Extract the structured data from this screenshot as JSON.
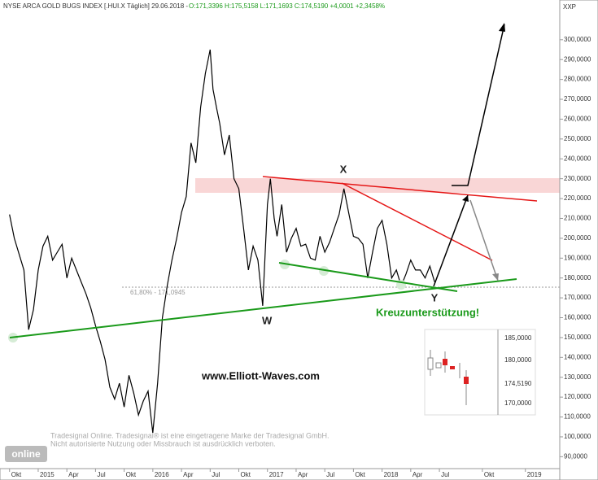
{
  "chart_data": {
    "type": "line",
    "title": "NYSE ARCA GOLD BUGS INDEX [.HUI.X  Täglich] 29.06.2018 -",
    "subtitle": "O:171,3396 H:175,5158 L:171,1693 C:174,5190 +4,0001 +2,3458%",
    "axis_label": "XXP",
    "color": "#000000",
    "x": [
      0,
      0.5,
      1,
      1.5,
      2,
      2.5,
      3,
      3.5,
      4,
      4.5,
      5,
      5.5,
      6,
      6.5,
      7,
      7.5,
      8,
      8.5,
      9,
      9.5,
      10,
      10.5,
      11,
      11.5,
      12,
      12.5,
      13,
      13.5,
      14,
      14.5,
      15,
      15.5,
      16,
      16.5,
      17,
      17.5,
      18,
      18.5,
      19,
      19.5,
      20,
      20.5,
      21,
      21.3,
      21.7,
      22,
      22.5,
      23,
      23.5,
      24,
      24.5,
      25,
      25.5,
      26,
      26.5,
      27,
      27.3,
      27.7,
      28,
      28.5,
      29,
      29.5,
      30,
      30.5,
      31,
      31.5,
      32,
      32.5,
      33,
      33.5,
      34,
      34.5,
      35,
      35.5,
      36,
      36.5,
      37,
      37.5,
      38,
      38.5,
      39,
      39.5,
      40,
      40.5,
      41,
      41.5,
      42,
      42.5,
      43,
      43.5,
      44,
      44.5
    ],
    "values": [
      212,
      200,
      192,
      184,
      154,
      164,
      184,
      196,
      201,
      189,
      193,
      197,
      180,
      190,
      184,
      178,
      172,
      165,
      156,
      148,
      139,
      125,
      119,
      127,
      115,
      131,
      122,
      111,
      118,
      123,
      102,
      127,
      160,
      176,
      189,
      200,
      213,
      221,
      248,
      238,
      266,
      283,
      295,
      275,
      265,
      258,
      242,
      252,
      230,
      225,
      205,
      184,
      196,
      189,
      166,
      217,
      230,
      210,
      201,
      217,
      193,
      200,
      205,
      196,
      197,
      190,
      189,
      201,
      193,
      198,
      205,
      212,
      225,
      213,
      201,
      200,
      197,
      180,
      193,
      205,
      209,
      197,
      180,
      184,
      176,
      182,
      189,
      184,
      184,
      180,
      186,
      178
    ],
    "xlim": [
      -1,
      57.6
    ],
    "ylim": [
      84,
      320
    ],
    "xticks": [
      {
        "value": 0,
        "label": "Okt"
      },
      {
        "value": 3,
        "label": "2015"
      },
      {
        "value": 6,
        "label": "Apr"
      },
      {
        "value": 9,
        "label": "Jul"
      },
      {
        "value": 12,
        "label": "Okt"
      },
      {
        "value": 15,
        "label": "2016"
      },
      {
        "value": 18,
        "label": "Apr"
      },
      {
        "value": 21,
        "label": "Jul"
      },
      {
        "value": 24,
        "label": "Okt"
      },
      {
        "value": 27,
        "label": "2017"
      },
      {
        "value": 30,
        "label": "Apr"
      },
      {
        "value": 33,
        "label": "Jul"
      },
      {
        "value": 36,
        "label": "Okt"
      },
      {
        "value": 39,
        "label": "2018"
      },
      {
        "value": 42,
        "label": "Apr"
      },
      {
        "value": 45,
        "label": "Jul"
      },
      {
        "value": 49.5,
        "label": "Okt"
      },
      {
        "value": 54,
        "label": "2019"
      }
    ],
    "yticks": [
      {
        "value": 90,
        "label": "90,0000"
      },
      {
        "value": 100,
        "label": "100,0000"
      },
      {
        "value": 110,
        "label": "110,0000"
      },
      {
        "value": 120,
        "label": "120,0000"
      },
      {
        "value": 130,
        "label": "130,0000"
      },
      {
        "value": 140,
        "label": "140,0000"
      },
      {
        "value": 150,
        "label": "150,0000"
      },
      {
        "value": 160,
        "label": "160,0000"
      },
      {
        "value": 170,
        "label": "170,0000"
      },
      {
        "value": 180,
        "label": "180,0000"
      },
      {
        "value": 190,
        "label": "190,0000"
      },
      {
        "value": 200,
        "label": "200,0000"
      },
      {
        "value": 210,
        "label": "210,0000"
      },
      {
        "value": 220,
        "label": "220,0000"
      },
      {
        "value": 230,
        "label": "230,0000"
      },
      {
        "value": 240,
        "label": "240,0000"
      },
      {
        "value": 250,
        "label": "250,0000"
      },
      {
        "value": 260,
        "label": "260,0000"
      },
      {
        "value": 270,
        "label": "270,0000"
      },
      {
        "value": 280,
        "label": "280,0000"
      },
      {
        "value": 290,
        "label": "290,0000"
      },
      {
        "value": 300,
        "label": "300,0000"
      }
    ],
    "annotations": [
      "W",
      "X",
      "Y",
      "Kreuzunterstützung!",
      "www.Elliott-Waves.com",
      "61,80% - 171,0945"
    ],
    "copyright": [
      "Tradesignal Online. Tradesignal® ist eine eingetragene Marke der Tradesignal GmbH.",
      "Nicht autorisierte Nutzung oder Missbrauch ist ausdrücklich verboten."
    ],
    "logo": "online",
    "inset_ticks": [
      "185,0000",
      "180,0000",
      "174,5190",
      "170,0000"
    ]
  }
}
